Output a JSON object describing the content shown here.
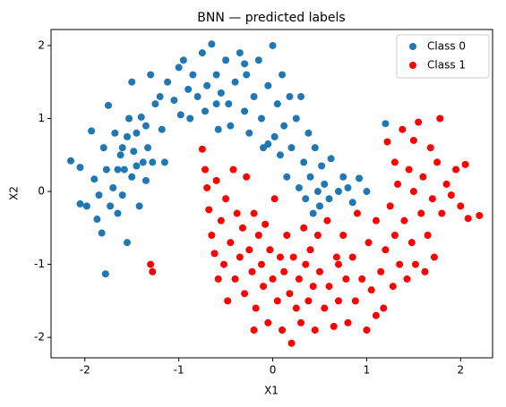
{
  "chart_data": {
    "type": "scatter",
    "title": "BNN — predicted labels",
    "x_label": "X1",
    "y_label": "X2",
    "xlim": [
      -2.36,
      2.34
    ],
    "ylim": [
      -2.28,
      2.22
    ],
    "xticks": [
      -2,
      -1,
      0,
      1,
      2
    ],
    "yticks": [
      -2,
      -1,
      0,
      1,
      2
    ],
    "legend": "upper right",
    "series": [
      {
        "name": "Class 0",
        "color": "#1f77b4",
        "x": [
          -2.15,
          -2.05,
          -2.05,
          -1.98,
          -1.93,
          -1.9,
          -1.87,
          -1.85,
          -1.82,
          -1.8,
          -1.78,
          -1.77,
          -1.75,
          -1.73,
          -1.7,
          -1.68,
          -1.65,
          -1.62,
          -1.6,
          -1.58,
          -1.55,
          -1.55,
          -1.53,
          -1.5,
          -1.5,
          -1.48,
          -1.45,
          -1.42,
          -1.4,
          -1.38,
          -1.35,
          -1.33,
          -1.3,
          -1.28,
          -1.25,
          -1.2,
          -1.18,
          -1.15,
          -1.12,
          -1.05,
          -1.0,
          -0.98,
          -0.95,
          -0.9,
          -0.88,
          -0.85,
          -0.8,
          -0.75,
          -0.72,
          -0.7,
          -0.65,
          -0.6,
          -0.58,
          -0.55,
          -0.5,
          -0.47,
          -0.45,
          -0.4,
          -0.35,
          -0.3,
          -0.28,
          -0.25,
          -0.2,
          -0.15,
          -0.12,
          -0.1,
          -0.05,
          0.0,
          0.02,
          0.05,
          0.08,
          0.1,
          0.12,
          0.15,
          0.18,
          0.2,
          0.25,
          0.28,
          0.3,
          0.33,
          0.35,
          0.38,
          0.4,
          0.43,
          0.45,
          0.48,
          0.5,
          0.52,
          0.55,
          0.6,
          0.62,
          0.7,
          0.75,
          0.8,
          0.85,
          0.92,
          1.0,
          1.2,
          -0.05,
          -0.3,
          -0.6,
          -1.6,
          -1.45,
          -1.65,
          -1.35
        ],
        "values": [
          0.42,
          0.33,
          -0.17,
          -0.2,
          0.83,
          0.17,
          -0.38,
          -0.05,
          -0.57,
          0.6,
          -1.13,
          0.3,
          1.18,
          -0.2,
          0.05,
          0.8,
          -0.3,
          0.5,
          -0.05,
          0.3,
          -0.7,
          0.75,
          1.0,
          0.2,
          1.5,
          0.55,
          0.8,
          -0.2,
          1.02,
          0.4,
          0.15,
          0.6,
          1.6,
          0.4,
          1.2,
          1.3,
          0.85,
          0.4,
          1.5,
          1.25,
          1.7,
          1.05,
          1.8,
          1.4,
          1.0,
          1.6,
          1.3,
          1.9,
          1.1,
          1.45,
          2.02,
          1.6,
          0.85,
          1.35,
          1.8,
          1.2,
          0.9,
          1.5,
          1.9,
          1.1,
          1.6,
          0.8,
          1.3,
          1.8,
          1.0,
          0.6,
          1.45,
          2.0,
          0.75,
          1.2,
          0.5,
          1.6,
          0.9,
          0.2,
          1.3,
          0.6,
          1.0,
          0.05,
          1.3,
          0.4,
          -0.1,
          0.8,
          0.2,
          -0.3,
          0.6,
          0.0,
          -0.2,
          0.35,
          0.1,
          -0.1,
          0.45,
          0.0,
          0.2,
          0.05,
          -0.15,
          0.18,
          0.0,
          0.93,
          0.65,
          1.75,
          1.2,
          0.6,
          0.35,
          0.3,
          0.9
        ]
      },
      {
        "name": "Class 1",
        "color": "#ff0000",
        "x": [
          -1.3,
          -1.28,
          -0.75,
          -0.72,
          -0.7,
          -0.68,
          -0.65,
          -0.62,
          -0.6,
          -0.58,
          -0.55,
          -0.52,
          -0.5,
          -0.48,
          -0.45,
          -0.42,
          -0.4,
          -0.38,
          -0.35,
          -0.32,
          -0.3,
          -0.28,
          -0.25,
          -0.22,
          -0.2,
          -0.18,
          -0.15,
          -0.12,
          -0.1,
          -0.08,
          -0.05,
          -0.03,
          0.0,
          0.02,
          0.05,
          0.08,
          0.1,
          0.12,
          0.15,
          0.18,
          0.2,
          0.22,
          0.25,
          0.28,
          0.3,
          0.33,
          0.35,
          0.38,
          0.4,
          0.43,
          0.45,
          0.48,
          0.5,
          0.55,
          0.58,
          0.6,
          0.65,
          0.68,
          0.7,
          0.75,
          0.78,
          0.8,
          0.85,
          0.88,
          0.9,
          0.95,
          1.0,
          1.02,
          1.05,
          1.1,
          1.15,
          1.18,
          1.2,
          1.22,
          1.25,
          1.28,
          1.3,
          1.33,
          1.35,
          1.38,
          1.4,
          1.43,
          1.45,
          1.48,
          1.5,
          1.52,
          1.55,
          1.58,
          1.6,
          1.62,
          1.65,
          1.68,
          1.7,
          1.72,
          1.75,
          1.78,
          1.8,
          1.85,
          1.9,
          1.95,
          2.0,
          2.05,
          2.08,
          2.2,
          1.1,
          0.7,
          -0.2,
          1.5,
          1.3
        ],
        "values": [
          -1.0,
          -1.1,
          0.58,
          0.3,
          0.05,
          -0.25,
          -0.6,
          -0.85,
          0.15,
          -1.2,
          -0.4,
          -1.0,
          -0.1,
          -1.5,
          -0.7,
          0.3,
          -1.2,
          -0.3,
          -0.9,
          -0.5,
          -1.4,
          0.2,
          -0.8,
          -1.1,
          -0.3,
          -1.6,
          -0.6,
          -1.0,
          -1.3,
          -0.45,
          -1.8,
          -0.8,
          -1.2,
          -0.1,
          -1.5,
          -0.9,
          -1.9,
          -1.1,
          -0.6,
          -1.4,
          -2.08,
          -0.9,
          -1.6,
          -1.2,
          -1.8,
          -0.5,
          -1.0,
          -1.5,
          -0.8,
          -1.3,
          -1.9,
          -0.6,
          -1.1,
          -1.6,
          -0.4,
          -1.3,
          -1.85,
          -0.9,
          -1.5,
          -0.6,
          -1.2,
          -1.8,
          -0.9,
          -1.5,
          -0.3,
          -1.2,
          -1.9,
          -0.7,
          -1.35,
          -0.4,
          -1.1,
          -1.6,
          -0.8,
          0.68,
          -0.2,
          -1.3,
          -0.6,
          0.1,
          -1.0,
          0.85,
          -0.4,
          -1.2,
          0.3,
          -0.7,
          0.0,
          -1.0,
          0.95,
          -0.3,
          0.2,
          -1.1,
          -0.6,
          0.6,
          -0.1,
          -0.9,
          0.4,
          1.0,
          -0.3,
          0.1,
          -0.05,
          0.3,
          -0.2,
          0.37,
          -0.37,
          -0.33,
          -1.7,
          -1.0,
          -1.9,
          0.7,
          0.4
        ]
      }
    ]
  }
}
